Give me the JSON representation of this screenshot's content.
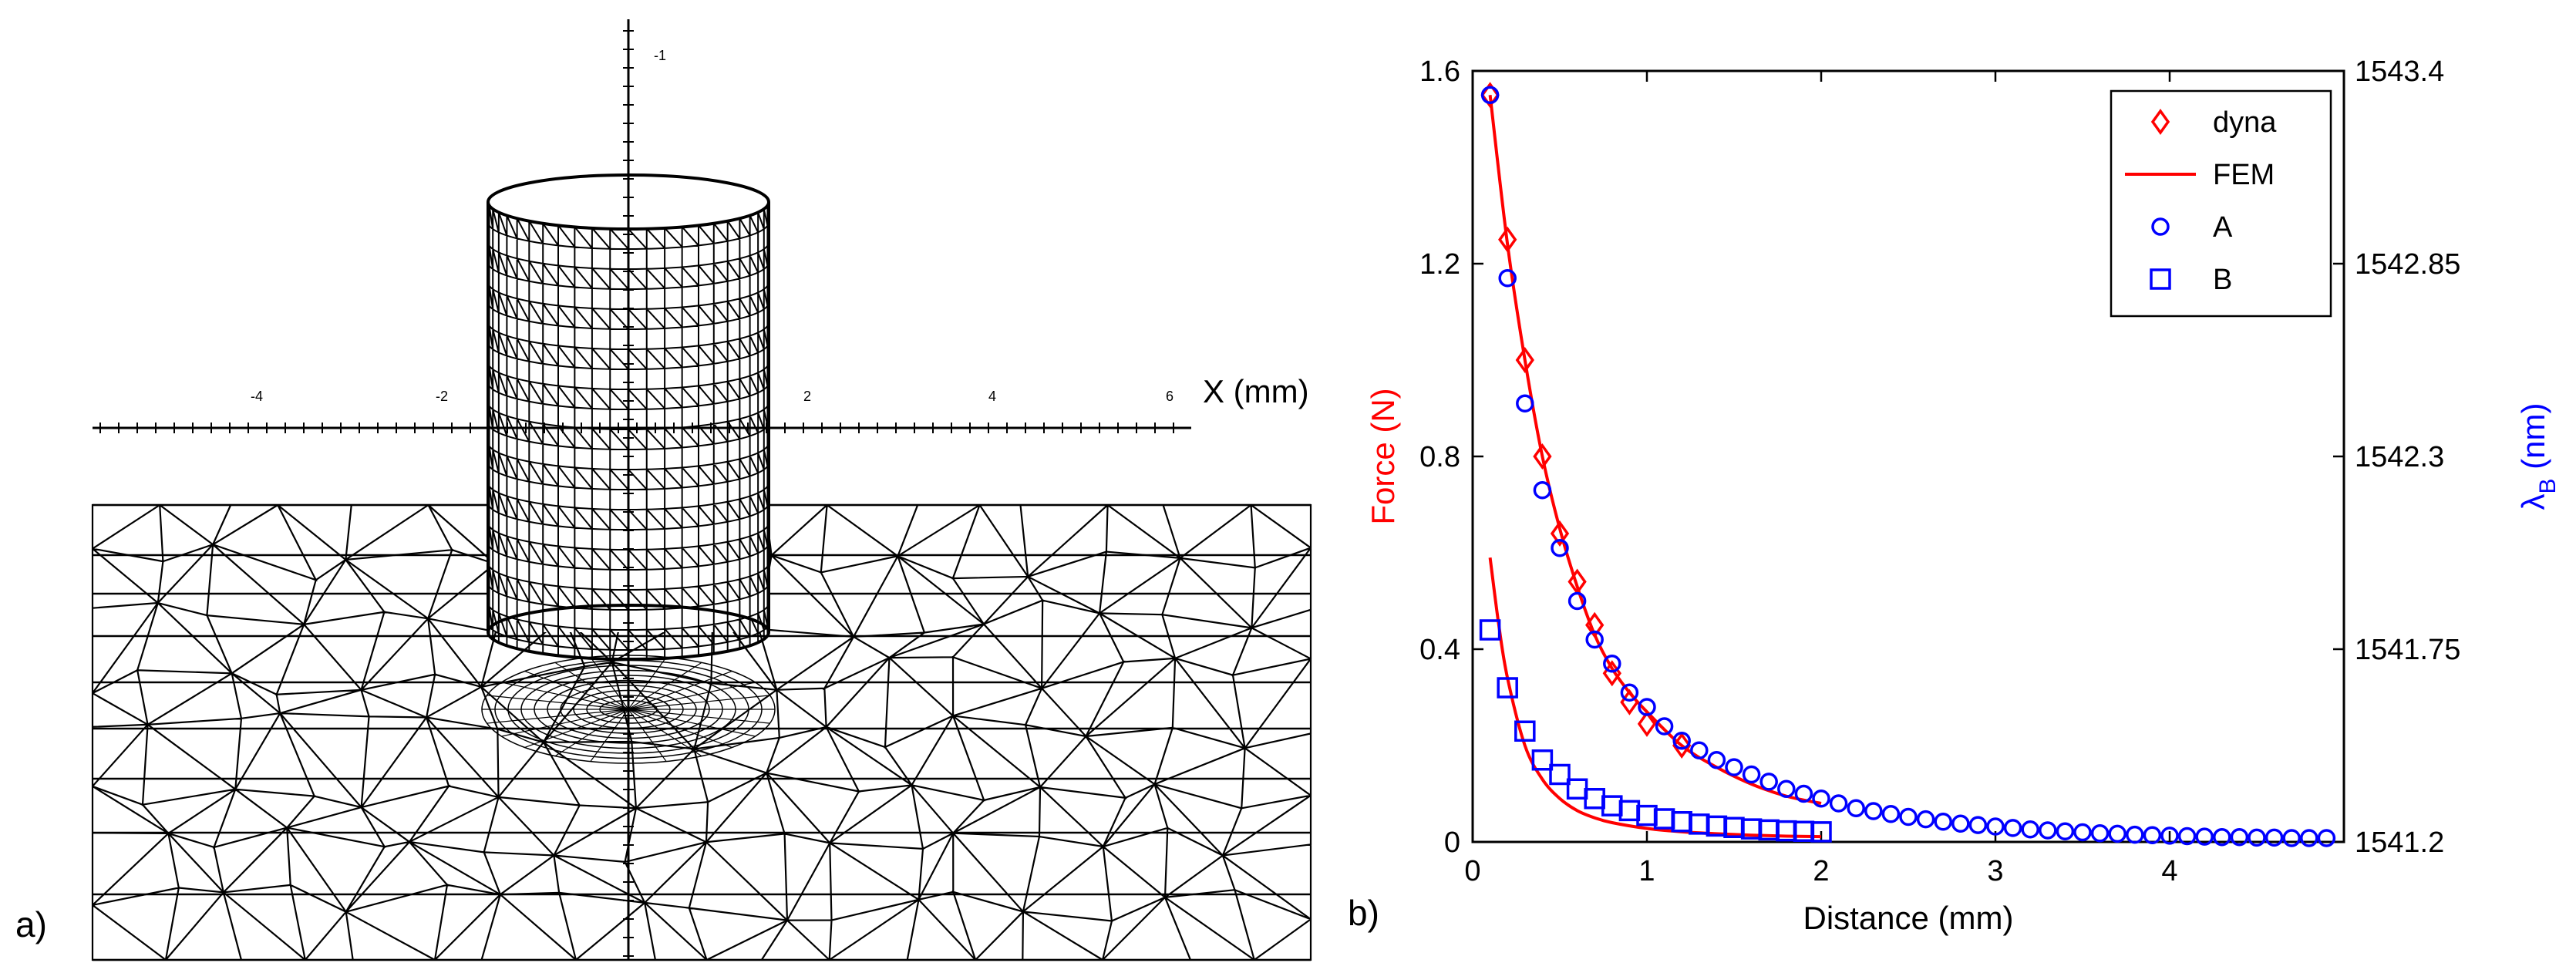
{
  "panel_a": {
    "label": "a)",
    "axis_label": "X (mm)",
    "ticks": [
      "-4",
      "-2",
      "2",
      "4",
      "6"
    ],
    "vertical_tick": "-1"
  },
  "panel_b": {
    "label": "b)"
  },
  "colors": {
    "dyna": "#ff0000",
    "fem": "#ff0000",
    "A": "#0000ff",
    "B": "#0000ff",
    "force_label": "#ff0000",
    "lambda_label": "#0000ff"
  },
  "chart_data": {
    "type": "line",
    "xlabel": "Distance (mm)",
    "ylabel_left": "Force (N)",
    "ylabel_right": "λ",
    "ylabel_right_sub": "B",
    "ylabel_right_unit": " (nm)",
    "xlim": [
      0,
      5
    ],
    "ylim_left": [
      0,
      1.6
    ],
    "ylim_right": [
      1541.2,
      1543.4
    ],
    "x_ticks": [
      {
        "v": 0,
        "label": "0"
      },
      {
        "v": 1,
        "label": "1"
      },
      {
        "v": 2,
        "label": "2"
      },
      {
        "v": 3,
        "label": "3"
      },
      {
        "v": 4,
        "label": "4"
      }
    ],
    "y_left_ticks": [
      {
        "v": 0,
        "label": "0"
      },
      {
        "v": 0.4,
        "label": "0.4"
      },
      {
        "v": 0.8,
        "label": "0.8"
      },
      {
        "v": 1.2,
        "label": "1.2"
      },
      {
        "v": 1.6,
        "label": "1.6"
      }
    ],
    "y_right_ticks": [
      {
        "v": 1541.2,
        "label": "1541.2"
      },
      {
        "v": 1541.75,
        "label": "1541.75"
      },
      {
        "v": 1542.3,
        "label": "1542.3"
      },
      {
        "v": 1542.85,
        "label": "1542.85"
      },
      {
        "v": 1543.4,
        "label": "1543.4"
      }
    ],
    "legend": [
      {
        "name": "dyna",
        "marker": "diamond"
      },
      {
        "name": "FEM",
        "marker": "line"
      },
      {
        "name": "A",
        "marker": "circle"
      },
      {
        "name": "B",
        "marker": "square"
      }
    ],
    "series": [
      {
        "name": "dyna",
        "axis": "left",
        "marker": "diamond",
        "x": [
          0.1,
          0.2,
          0.3,
          0.4,
          0.5,
          0.6,
          0.7,
          0.8,
          0.9,
          1.0,
          1.2
        ],
        "y": [
          1.55,
          1.25,
          1.0,
          0.8,
          0.64,
          0.54,
          0.45,
          0.35,
          0.29,
          0.245,
          0.2
        ]
      },
      {
        "name": "FEM (upper)",
        "axis": "left",
        "marker": "line",
        "x": [
          0.1,
          0.2,
          0.3,
          0.4,
          0.5,
          0.6,
          0.7,
          0.8,
          0.9,
          1.0,
          1.2,
          1.4,
          1.6,
          1.8,
          2.0
        ],
        "y": [
          1.55,
          1.24,
          1.0,
          0.8,
          0.65,
          0.53,
          0.43,
          0.36,
          0.31,
          0.27,
          0.2,
          0.155,
          0.12,
          0.095,
          0.08
        ]
      },
      {
        "name": "FEM (lower)",
        "axis": "left",
        "marker": "line",
        "x": [
          0.1,
          0.15,
          0.2,
          0.3,
          0.4,
          0.5,
          0.6,
          0.7,
          0.8,
          1.0,
          1.2,
          1.4,
          1.6,
          1.8,
          2.0
        ],
        "y": [
          0.59,
          0.45,
          0.34,
          0.2,
          0.13,
          0.09,
          0.065,
          0.05,
          0.04,
          0.028,
          0.021,
          0.017,
          0.014,
          0.012,
          0.011
        ]
      },
      {
        "name": "A",
        "axis": "left",
        "marker": "circle",
        "x": [
          0.1,
          0.2,
          0.3,
          0.4,
          0.5,
          0.6,
          0.7,
          0.8,
          0.9,
          1.0,
          1.1,
          1.2,
          1.3,
          1.4,
          1.5,
          1.6,
          1.7,
          1.8,
          1.9,
          2.0,
          2.1,
          2.2,
          2.3,
          2.4,
          2.5,
          2.6,
          2.7,
          2.8,
          2.9,
          3.0,
          3.1,
          3.2,
          3.3,
          3.4,
          3.5,
          3.6,
          3.7,
          3.8,
          3.9,
          4.0,
          4.1,
          4.2,
          4.3,
          4.4,
          4.5,
          4.6,
          4.7,
          4.8,
          4.9
        ],
        "y": [
          1.55,
          1.17,
          0.91,
          0.73,
          0.61,
          0.5,
          0.42,
          0.37,
          0.31,
          0.28,
          0.24,
          0.21,
          0.19,
          0.17,
          0.155,
          0.14,
          0.125,
          0.11,
          0.1,
          0.09,
          0.08,
          0.07,
          0.064,
          0.058,
          0.052,
          0.047,
          0.042,
          0.038,
          0.035,
          0.032,
          0.029,
          0.026,
          0.024,
          0.022,
          0.02,
          0.018,
          0.017,
          0.015,
          0.014,
          0.013,
          0.012,
          0.011,
          0.01,
          0.01,
          0.009,
          0.009,
          0.008,
          0.008,
          0.008
        ]
      },
      {
        "name": "B",
        "axis": "left",
        "marker": "square",
        "x": [
          0.1,
          0.2,
          0.3,
          0.4,
          0.5,
          0.6,
          0.7,
          0.8,
          0.9,
          1.0,
          1.1,
          1.2,
          1.3,
          1.4,
          1.5,
          1.6,
          1.7,
          1.8,
          1.9,
          2.0
        ],
        "y": [
          0.44,
          0.32,
          0.23,
          0.17,
          0.14,
          0.11,
          0.09,
          0.075,
          0.065,
          0.055,
          0.048,
          0.042,
          0.037,
          0.033,
          0.03,
          0.027,
          0.025,
          0.023,
          0.022,
          0.021
        ]
      }
    ]
  }
}
